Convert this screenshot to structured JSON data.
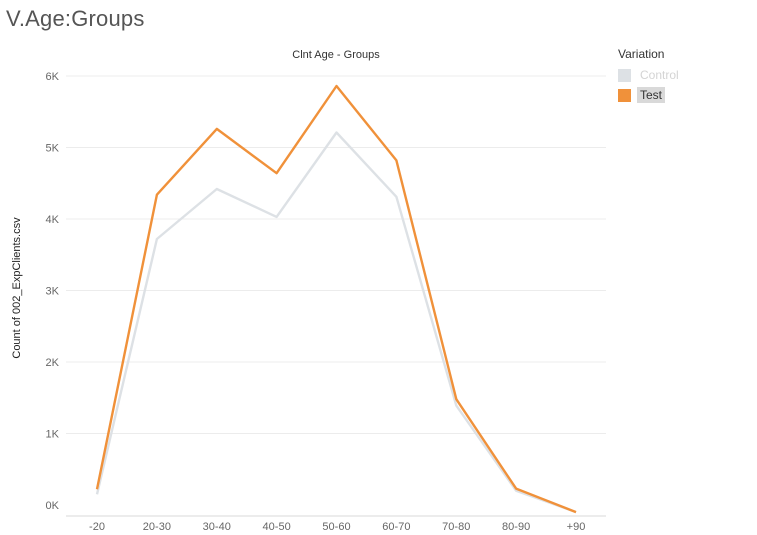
{
  "page": {
    "title": "V.Age:Groups"
  },
  "legend": {
    "title": "Variation",
    "items": [
      {
        "label": "Control",
        "color": "#dde1e5",
        "state": "dim"
      },
      {
        "label": "Test",
        "color": "#f0913a",
        "state": "selected"
      }
    ]
  },
  "chart_data": {
    "type": "line",
    "title": "Clnt Age - Groups",
    "xlabel": "",
    "ylabel": "Count of 002_ExpClients.csv",
    "categories": [
      "-20",
      "20-30",
      "30-40",
      "40-50",
      "50-60",
      "60-70",
      "70-80",
      "80-90",
      "+90"
    ],
    "series": [
      {
        "name": "Control",
        "color": "#dde1e5",
        "values": [
          150,
          3720,
          4420,
          4030,
          5210,
          4310,
          1390,
          200,
          -100
        ]
      },
      {
        "name": "Test",
        "color": "#f0913a",
        "values": [
          220,
          4340,
          5260,
          4640,
          5860,
          4820,
          1480,
          230,
          -100
        ]
      }
    ],
    "ylim": [
      -100,
      6200
    ],
    "yticks": [
      0,
      1000,
      2000,
      3000,
      4000,
      5000,
      6000
    ],
    "ytick_labels": [
      "0K",
      "1K",
      "2K",
      "3K",
      "4K",
      "5K",
      "6K"
    ],
    "grid": true,
    "legend_position": "right"
  }
}
